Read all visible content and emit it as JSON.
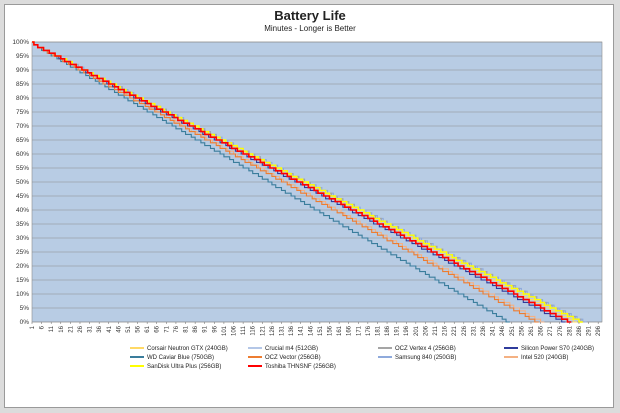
{
  "chart_data": {
    "type": "line",
    "title": "Battery Life",
    "subtitle": "Minutes - Longer is Better",
    "xlabel": "",
    "ylabel": "",
    "ylim": [
      0,
      100
    ],
    "y_ticks": [
      "0%",
      "5%",
      "10%",
      "15%",
      "20%",
      "25%",
      "30%",
      "35%",
      "40%",
      "45%",
      "50%",
      "55%",
      "60%",
      "65%",
      "70%",
      "75%",
      "80%",
      "85%",
      "90%",
      "95%",
      "100%"
    ],
    "x_ticks": [
      1,
      6,
      11,
      16,
      21,
      26,
      31,
      36,
      41,
      46,
      51,
      56,
      61,
      66,
      71,
      76,
      81,
      86,
      91,
      96,
      101,
      106,
      111,
      116,
      121,
      126,
      131,
      136,
      141,
      146,
      151,
      156,
      161,
      166,
      171,
      176,
      181,
      186,
      191,
      196,
      201,
      206,
      211,
      216,
      221,
      226,
      231,
      236,
      241,
      246,
      251,
      256,
      261,
      266,
      271,
      276,
      281,
      286,
      291,
      296
    ],
    "xlim": [
      1,
      298
    ],
    "grid": true,
    "legend_position": "bottom",
    "series": [
      {
        "name": "Corsair Neutron GTX (240GB)",
        "color": "#ffd966",
        "end_x": 285
      },
      {
        "name": "Crucial m4 (512GB)",
        "color": "#b4c7e7",
        "end_x": 289
      },
      {
        "name": "OCZ Vertex 4 (256GB)",
        "color": "#a5a5a5",
        "end_x": 289
      },
      {
        "name": "Silicon Power S70 (240GB)",
        "color": "#2f3c9c",
        "end_x": 279
      },
      {
        "name": "WD Caviar Blue (750GB)",
        "color": "#3a7d9c",
        "end_x": 250
      },
      {
        "name": "OCZ Vector (256GB)",
        "color": "#ed7d31",
        "end_x": 265
      },
      {
        "name": "Samsung 840 (250GB)",
        "color": "#8faadc",
        "end_x": 290
      },
      {
        "name": "Intel 520 (240GB)",
        "color": "#f4b183",
        "end_x": 268
      },
      {
        "name": "SanDisk Ultra Plus (256GB)",
        "color": "#ffff00",
        "end_x": 288
      },
      {
        "name": "Toshiba THNSNF (256GB)",
        "color": "#ff0000",
        "end_x": 282
      }
    ]
  }
}
